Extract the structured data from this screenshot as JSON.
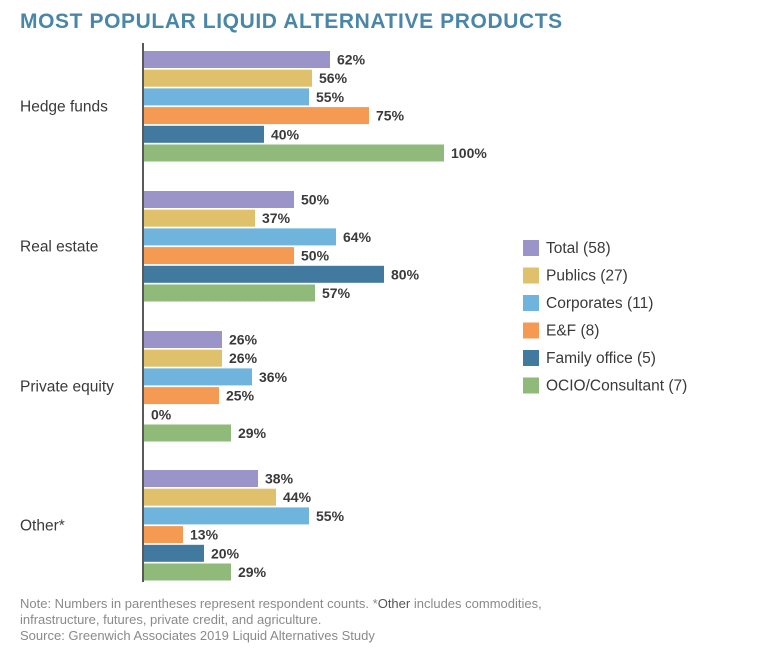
{
  "title": "MOST POPULAR LIQUID ALTERNATIVE PRODUCTS",
  "notes": {
    "line1_prefix": "Note: Numbers in parentheses represent respondent counts. *",
    "line1_term": "Other",
    "line1_suffix": " includes commodities,",
    "line2": "infrastructure, futures, private credit, and agriculture.",
    "source": "Source: Greenwich Associates 2019 Liquid Alternatives Study"
  },
  "chart_data": {
    "type": "bar",
    "orientation": "horizontal",
    "categories": [
      "Hedge funds",
      "Real estate",
      "Private equity",
      "Other*"
    ],
    "series": [
      {
        "name": "Total (58)",
        "color": "#9b94c9",
        "values": [
          62,
          50,
          26,
          38
        ]
      },
      {
        "name": "Publics (27)",
        "color": "#dfc16b",
        "values": [
          56,
          37,
          26,
          44
        ]
      },
      {
        "name": "Corporates (11)",
        "color": "#6fb4dc",
        "values": [
          55,
          64,
          36,
          55
        ]
      },
      {
        "name": "E&F (8)",
        "color": "#f59a53",
        "values": [
          75,
          50,
          25,
          13
        ]
      },
      {
        "name": "Family office (5)",
        "color": "#41799f",
        "values": [
          40,
          80,
          0,
          20
        ]
      },
      {
        "name": "OCIO/Consultant (7)",
        "color": "#8fba7a",
        "values": [
          100,
          57,
          29,
          29
        ]
      }
    ],
    "value_suffix": "%",
    "xlim": [
      0,
      100
    ],
    "grid": false,
    "legend": "right"
  }
}
